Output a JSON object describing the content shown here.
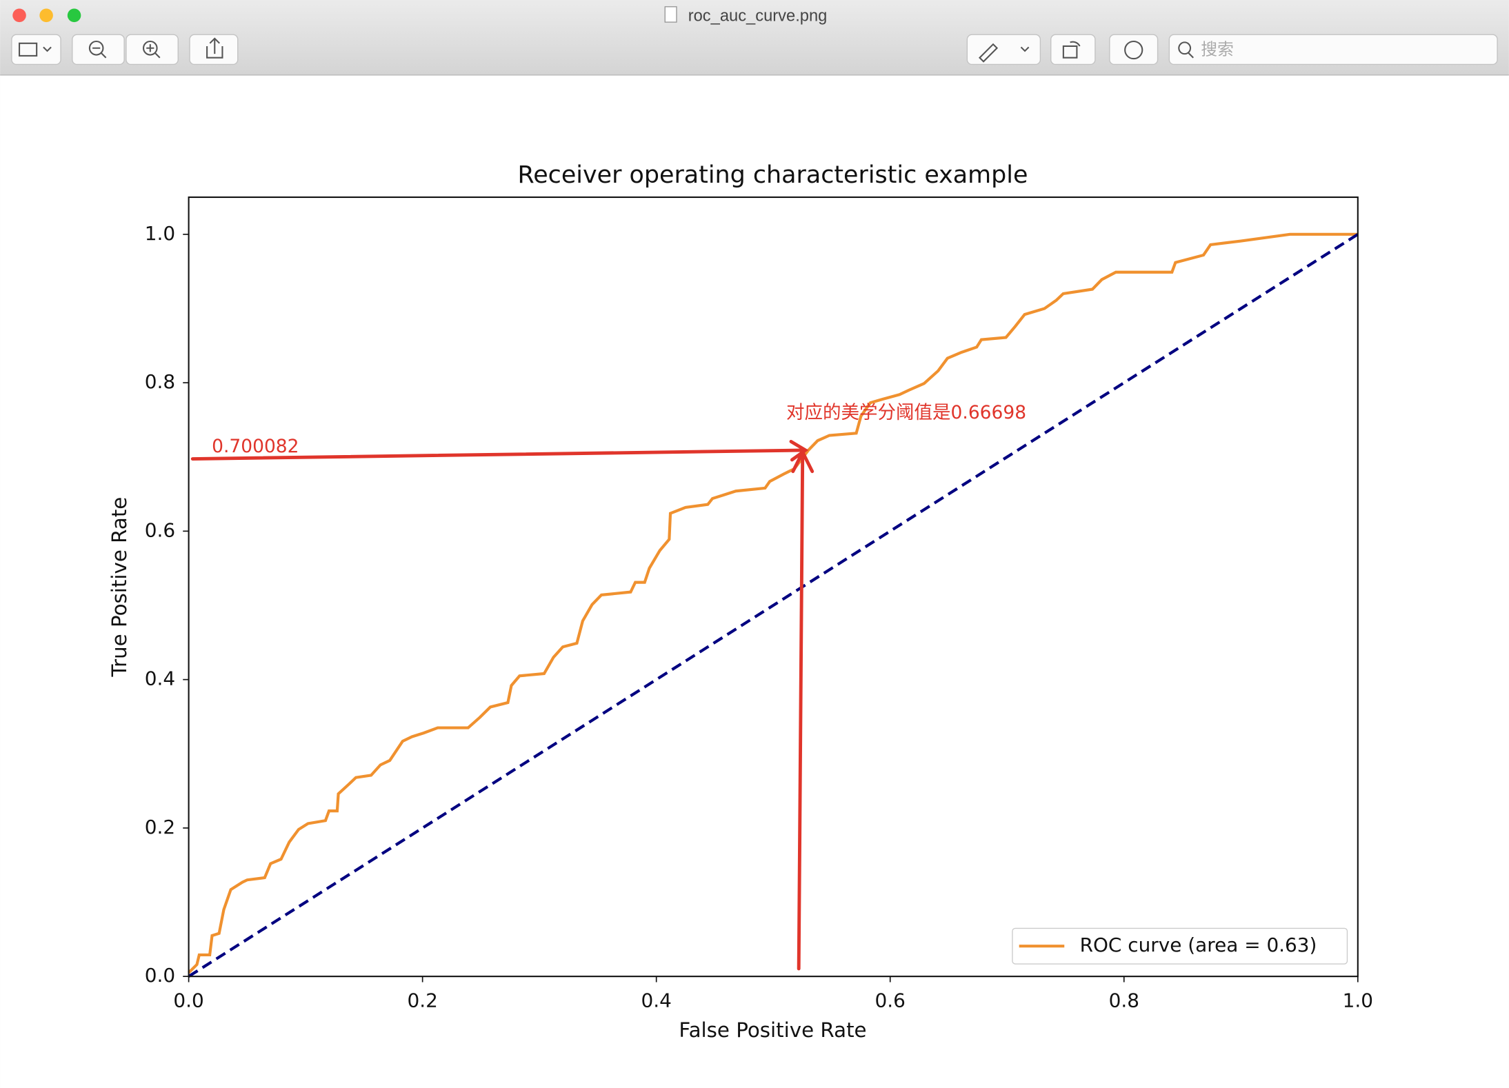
{
  "window": {
    "title": "roc_auc_curve.png",
    "search_placeholder": "搜索"
  },
  "chart_data": {
    "type": "line",
    "title": "Receiver operating characteristic example",
    "x_label": "False Positive Rate",
    "y_label": "True Positive Rate",
    "xlim": [
      0,
      1
    ],
    "ylim": [
      0,
      1.05
    ],
    "xticks": [
      {
        "value": 0,
        "label": "0.0"
      },
      0.2,
      0.4,
      0.6,
      0.8,
      {
        "value": 1,
        "label": "1.0"
      }
    ],
    "yticks": [
      {
        "value": 0,
        "label": "0.0"
      },
      0.2,
      0.4,
      0.6,
      0.8,
      {
        "value": 1,
        "label": "1.0"
      }
    ],
    "legend": "lower right",
    "series": [
      {
        "name": "ROC curve (area = 0.63)",
        "color": "#f0912f",
        "linestyle": "solid",
        "x": [
          0,
          0.007,
          0.009,
          0.018,
          0.02,
          0.026,
          0.03,
          0.036,
          0.046,
          0.05,
          0.065,
          0.07,
          0.079,
          0.086,
          0.094,
          0.102,
          0.117,
          0.12,
          0.127,
          0.128,
          0.137,
          0.143,
          0.156,
          0.164,
          0.172,
          0.183,
          0.191,
          0.201,
          0.213,
          0.239,
          0.249,
          0.258,
          0.273,
          0.276,
          0.283,
          0.304,
          0.312,
          0.32,
          0.332,
          0.337,
          0.345,
          0.353,
          0.378,
          0.382,
          0.39,
          0.394,
          0.403,
          0.411,
          0.412,
          0.425,
          0.444,
          0.448,
          0.456,
          0.468,
          0.493,
          0.497,
          0.509,
          0.518,
          0.53,
          0.538,
          0.548,
          0.571,
          0.575,
          0.583,
          0.594,
          0.608,
          0.616,
          0.629,
          0.641,
          0.649,
          0.661,
          0.674,
          0.678,
          0.699,
          0.707,
          0.715,
          0.732,
          0.742,
          0.748,
          0.773,
          0.781,
          0.793,
          0.841,
          0.844,
          0.868,
          0.874,
          0.9,
          0.942,
          1
        ],
        "values": [
          0.005,
          0.016,
          0.029,
          0.029,
          0.055,
          0.058,
          0.09,
          0.117,
          0.127,
          0.13,
          0.133,
          0.152,
          0.158,
          0.181,
          0.198,
          0.206,
          0.21,
          0.223,
          0.223,
          0.246,
          0.259,
          0.268,
          0.271,
          0.285,
          0.291,
          0.317,
          0.323,
          0.328,
          0.335,
          0.335,
          0.349,
          0.363,
          0.369,
          0.392,
          0.405,
          0.408,
          0.43,
          0.444,
          0.449,
          0.479,
          0.501,
          0.514,
          0.518,
          0.531,
          0.531,
          0.55,
          0.574,
          0.589,
          0.624,
          0.632,
          0.636,
          0.644,
          0.648,
          0.654,
          0.658,
          0.667,
          0.677,
          0.684,
          0.709,
          0.722,
          0.729,
          0.732,
          0.755,
          0.773,
          0.778,
          0.784,
          0.79,
          0.799,
          0.816,
          0.833,
          0.841,
          0.848,
          0.858,
          0.861,
          0.876,
          0.892,
          0.9,
          0.911,
          0.92,
          0.926,
          0.939,
          0.949,
          0.949,
          0.962,
          0.972,
          0.986,
          0.991,
          1,
          1
        ]
      },
      {
        "color": "#000080",
        "linestyle": "dashed",
        "x": [
          0,
          1
        ],
        "values": [
          0,
          1
        ]
      }
    ],
    "annotations": [
      {
        "text": "0.700082"
      },
      {
        "text": "对应的美学分阈值是0.66698"
      }
    ]
  }
}
